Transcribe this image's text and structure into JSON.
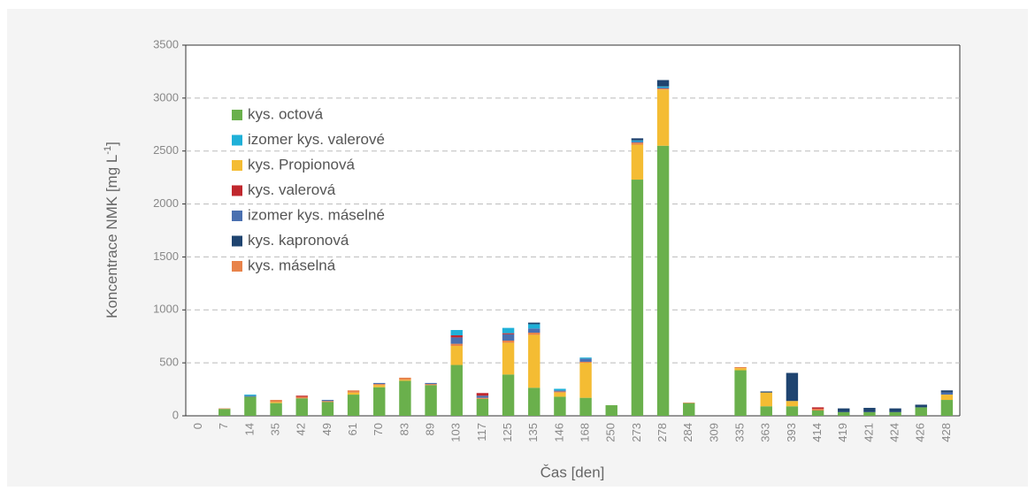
{
  "chart_data": {
    "type": "stacked_bar",
    "ylabel": [
      "Koncentrace NMK [mg L",
      "-1",
      "]"
    ],
    "xlabel": "Čas [den]",
    "categories": [
      "0",
      "7",
      "14",
      "35",
      "42",
      "49",
      "61",
      "70",
      "83",
      "89",
      "103",
      "117",
      "125",
      "135",
      "146",
      "168",
      "250",
      "273",
      "278",
      "284",
      "309",
      "335",
      "363",
      "393",
      "414",
      "419",
      "421",
      "424",
      "426",
      "428"
    ],
    "ylim": [
      0,
      3500
    ],
    "yticks": [
      0,
      500,
      1000,
      1500,
      2000,
      2500,
      3000,
      3500
    ],
    "grid": true,
    "series": [
      {
        "name": "kys. octová",
        "color": "#6ab04c",
        "values": [
          0,
          65,
          180,
          120,
          165,
          130,
          200,
          270,
          330,
          290,
          480,
          160,
          390,
          265,
          180,
          170,
          100,
          2230,
          2550,
          120,
          0,
          430,
          90,
          90,
          50,
          35,
          35,
          35,
          80,
          150
        ]
      },
      {
        "name": "kys. Propionová",
        "color": "#f4bc33",
        "values": [
          0,
          0,
          0,
          10,
          0,
          0,
          20,
          20,
          10,
          0,
          180,
          0,
          300,
          500,
          40,
          330,
          0,
          330,
          530,
          0,
          0,
          20,
          130,
          50,
          0,
          0,
          0,
          0,
          0,
          50
        ]
      },
      {
        "name": "kys. máselná",
        "color": "#e8834a",
        "values": [
          0,
          5,
          0,
          20,
          15,
          10,
          20,
          10,
          20,
          10,
          20,
          10,
          20,
          20,
          10,
          10,
          0,
          20,
          10,
          5,
          0,
          10,
          0,
          0,
          15,
          0,
          0,
          0,
          0,
          0
        ]
      },
      {
        "name": "izomer kys. máselné",
        "color": "#4a70b0",
        "values": [
          0,
          0,
          10,
          0,
          0,
          10,
          0,
          10,
          0,
          10,
          60,
          20,
          60,
          40,
          10,
          30,
          0,
          10,
          10,
          0,
          0,
          0,
          0,
          0,
          0,
          0,
          0,
          0,
          0,
          20
        ]
      },
      {
        "name": "kys. valerová",
        "color": "#c0272d",
        "values": [
          0,
          0,
          0,
          0,
          10,
          0,
          0,
          0,
          0,
          0,
          20,
          25,
          10,
          0,
          0,
          0,
          0,
          0,
          0,
          0,
          0,
          0,
          0,
          0,
          15,
          0,
          0,
          0,
          0,
          0
        ]
      },
      {
        "name": "izomer kys. valerové",
        "color": "#1fb0d8",
        "values": [
          0,
          0,
          10,
          0,
          0,
          0,
          0,
          0,
          0,
          0,
          50,
          0,
          50,
          40,
          15,
          10,
          0,
          10,
          10,
          0,
          0,
          0,
          0,
          0,
          0,
          0,
          0,
          0,
          0,
          0
        ]
      },
      {
        "name": "kys. kapronová",
        "color": "#1f4470",
        "values": [
          0,
          0,
          0,
          0,
          0,
          0,
          0,
          0,
          0,
          0,
          0,
          0,
          0,
          15,
          0,
          0,
          0,
          20,
          60,
          0,
          0,
          0,
          10,
          265,
          0,
          35,
          40,
          35,
          25,
          20
        ]
      }
    ],
    "legend_order": [
      0,
      5,
      1,
      4,
      3,
      6,
      2
    ]
  }
}
